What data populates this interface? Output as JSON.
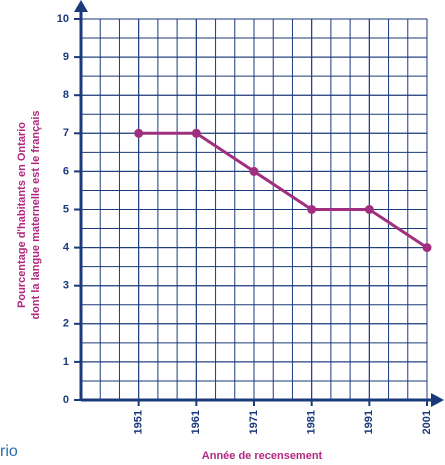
{
  "chart_data": {
    "type": "line",
    "y_label_lines": [
      "Pourcentage d'habitants en Ontario",
      "dont la langue maternelle est le français"
    ],
    "x_label": "Année de recensement",
    "footer_text": "rio",
    "x": [
      1951,
      1961,
      1971,
      1981,
      1991,
      2001
    ],
    "series": [
      {
        "color": "#a0307f",
        "values": [
          7,
          7,
          6,
          5,
          5,
          4
        ]
      }
    ],
    "xlim": [
      1941,
      2001
    ],
    "xticks": [
      1951,
      1961,
      1971,
      1981,
      1991,
      2001
    ],
    "ylim": [
      0,
      10
    ],
    "yticks": [
      0,
      1,
      2,
      3,
      4,
      5,
      6,
      7,
      8,
      9,
      10
    ],
    "grid": true,
    "axis_color": "#1b3a7a"
  }
}
